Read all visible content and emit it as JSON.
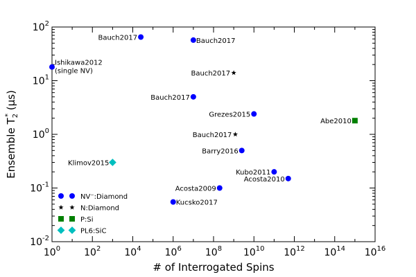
{
  "chart_data": {
    "type": "scatter",
    "xlabel": "# of Interrogated Spins",
    "ylabel": "Ensemble T",
    "ylabel_sub": "2",
    "ylabel_sup": "*",
    "ylabel_unit": " (μs)",
    "xscale": "log",
    "yscale": "log",
    "xlim": [
      1,
      1e+16
    ],
    "ylim": [
      0.01,
      100
    ],
    "x_ticks": [
      1,
      100,
      10000,
      1000000,
      100000000,
      10000000000,
      1000000000000,
      100000000000000,
      10000000000000000
    ],
    "x_tick_labels": [
      {
        "base": "10",
        "exp": "0"
      },
      {
        "base": "10",
        "exp": "2"
      },
      {
        "base": "10",
        "exp": "4"
      },
      {
        "base": "10",
        "exp": "6"
      },
      {
        "base": "10",
        "exp": "8"
      },
      {
        "base": "10",
        "exp": "10"
      },
      {
        "base": "10",
        "exp": "12"
      },
      {
        "base": "10",
        "exp": "14"
      },
      {
        "base": "10",
        "exp": "16"
      }
    ],
    "y_ticks": [
      0.01,
      0.1,
      1,
      10,
      100
    ],
    "y_tick_labels": [
      {
        "base": "10",
        "exp": "-2"
      },
      {
        "base": "10",
        "exp": "-1"
      },
      {
        "base": "10",
        "exp": "0"
      },
      {
        "base": "10",
        "exp": "1"
      },
      {
        "base": "10",
        "exp": "2"
      }
    ],
    "legend_position": "bottom-left",
    "series": [
      {
        "name": "NV⁻:Diamond",
        "marker": "circle",
        "color": "#0000ff",
        "points": [
          {
            "x": 1,
            "y": 18,
            "label": "Ishikawa2012",
            "label2": "(single NV)",
            "anchor": "start"
          },
          {
            "x": 25000,
            "y": 65,
            "label": "Bauch2017",
            "anchor": "end"
          },
          {
            "x": 10000000,
            "y": 57,
            "label": "Bauch2017",
            "anchor": "start"
          },
          {
            "x": 10000000,
            "y": 5,
            "label": "Bauch2017",
            "anchor": "end"
          },
          {
            "x": 10000000000,
            "y": 2.4,
            "label": "Grezes2015",
            "anchor": "end"
          },
          {
            "x": 2500000000,
            "y": 0.5,
            "label": "Barry2016",
            "anchor": "end"
          },
          {
            "x": 100000000000,
            "y": 0.2,
            "label": "Kubo2011",
            "anchor": "end"
          },
          {
            "x": 500000000000,
            "y": 0.15,
            "label": "Acosta2010",
            "anchor": "end"
          },
          {
            "x": 200000000,
            "y": 0.1,
            "label": "Acosta2009",
            "anchor": "end"
          },
          {
            "x": 1000000,
            "y": 0.055,
            "label": "Kucsko2017",
            "anchor": "start"
          }
        ]
      },
      {
        "name": "N:Diamond",
        "marker": "star",
        "color": "#000000",
        "points": [
          {
            "x": 1000000000,
            "y": 14,
            "label": "Bauch2017",
            "anchor": "end"
          },
          {
            "x": 1200000000,
            "y": 1,
            "label": "Bauch2017",
            "anchor": "end"
          }
        ]
      },
      {
        "name": "P:Si",
        "marker": "square",
        "color": "#008000",
        "points": [
          {
            "x": 1000000000000000,
            "y": 1.8,
            "label": "Abe2010",
            "anchor": "end"
          }
        ]
      },
      {
        "name": "PL6:SiC",
        "marker": "diamond",
        "color": "#00bfbf",
        "points": [
          {
            "x": 1000,
            "y": 0.3,
            "label": "Klimov2015",
            "anchor": "end"
          }
        ]
      }
    ]
  }
}
